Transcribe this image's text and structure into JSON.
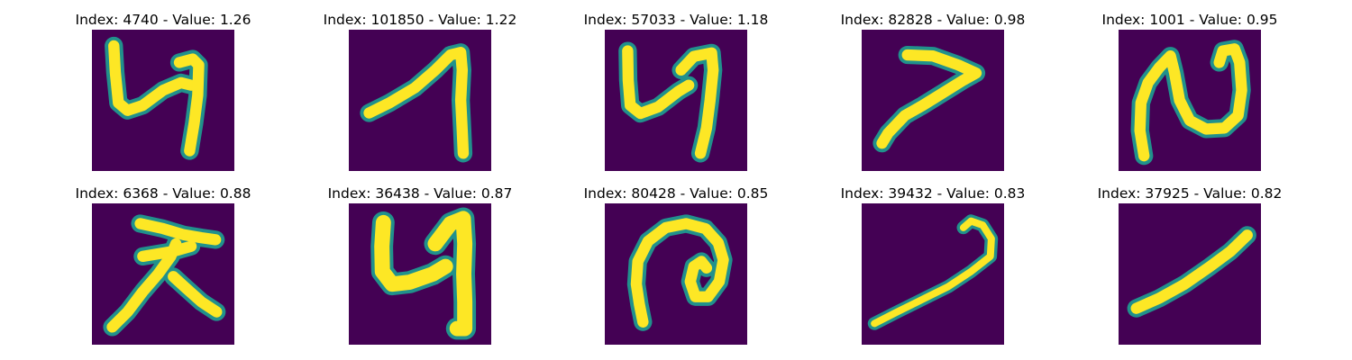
{
  "colors": {
    "background": "#440154",
    "stroke": "#fde725",
    "edge": "#21918c",
    "mid": "#5ec962"
  },
  "panels": [
    {
      "title": "Index: 4740 - Value: 1.26",
      "glyph": "digit-4-like"
    },
    {
      "title": "Index: 101850 - Value: 1.22",
      "glyph": "digit-7-like"
    },
    {
      "title": "Index: 57033 - Value: 1.18",
      "glyph": "digit-4-like"
    },
    {
      "title": "Index: 82828 - Value: 0.98",
      "glyph": "digit-7-like"
    },
    {
      "title": "Index: 1001 - Value: 0.95",
      "glyph": "loop-glyph"
    },
    {
      "title": "Index: 6368 - Value: 0.88",
      "glyph": "cross-glyph"
    },
    {
      "title": "Index: 36438 - Value: 0.87",
      "glyph": "digit-4-like"
    },
    {
      "title": "Index: 80428 - Value: 0.85",
      "glyph": "spiral-glyph"
    },
    {
      "title": "Index: 39432 - Value: 0.83",
      "glyph": "hook-glyph"
    },
    {
      "title": "Index: 37925 - Value: 0.82",
      "glyph": "slash-glyph"
    }
  ]
}
